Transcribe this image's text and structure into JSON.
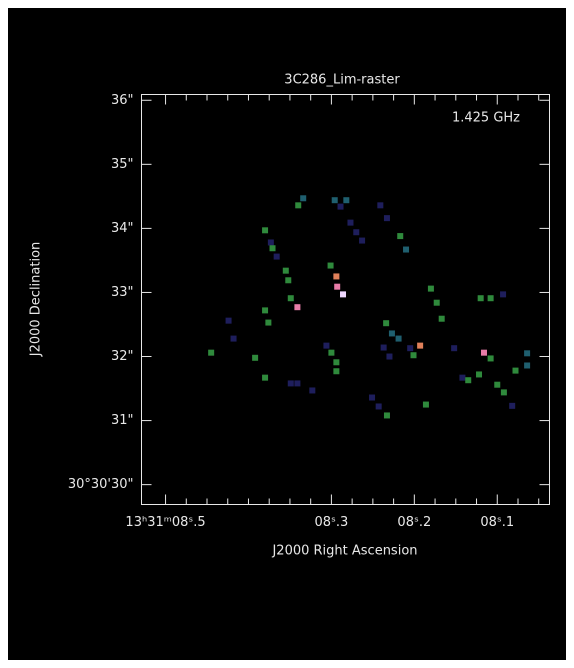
{
  "chart_data": {
    "type": "raster",
    "title": "3C286_Lim-raster",
    "annotation": "1.425 GHz",
    "x_label": "J2000 Right Ascension",
    "y_label": "J2000 Declination",
    "xlim": [
      8.529,
      8.037
    ],
    "ylim": [
      29.69,
      36.09
    ],
    "xticks": [
      {
        "value": 8.5,
        "label": "13ʰ31ᵐ08ˢ.5"
      },
      {
        "value": 8.3,
        "label": "08ˢ.3"
      },
      {
        "value": 8.2,
        "label": "08ˢ.2"
      },
      {
        "value": 8.1,
        "label": "08ˢ.1"
      }
    ],
    "xminorticks": [
      8.475,
      8.45,
      8.425,
      8.4,
      8.375,
      8.35,
      8.325,
      8.275,
      8.25,
      8.225,
      8.175,
      8.15,
      8.125,
      8.075,
      8.05
    ],
    "yticks": [
      {
        "value": 36,
        "label": "36\""
      },
      {
        "value": 35,
        "label": "35\""
      },
      {
        "value": 34,
        "label": "34\""
      },
      {
        "value": 33,
        "label": "33\""
      },
      {
        "value": 32,
        "label": "32\""
      },
      {
        "value": 31,
        "label": "31\""
      },
      {
        "value": 30,
        "label": "30°30'30\""
      }
    ],
    "cells": {
      "ra": [
        8.445,
        8.424,
        8.418,
        8.392,
        8.38,
        8.373,
        8.371,
        8.366,
        8.355,
        8.352,
        8.349,
        8.341,
        8.38,
        8.376,
        8.38,
        8.349,
        8.341,
        8.323,
        8.34,
        8.334,
        8.296,
        8.289,
        8.282,
        8.301,
        8.294,
        8.293,
        8.286,
        8.306,
        8.3,
        8.294,
        8.294,
        8.277,
        8.27,
        8.263,
        8.241,
        8.233,
        8.217,
        8.21,
        8.234,
        8.227,
        8.219,
        8.237,
        8.23,
        8.205,
        8.193,
        8.201,
        8.251,
        8.243,
        8.233,
        8.186,
        8.18,
        8.173,
        8.167,
        8.152,
        8.142,
        8.135,
        8.12,
        8.108,
        8.093,
        8.116,
        8.108,
        8.122,
        8.1,
        8.092,
        8.082,
        8.064,
        8.064,
        8.078
      ],
      "dec": [
        32.06,
        32.56,
        32.28,
        31.98,
        33.97,
        33.78,
        33.69,
        33.56,
        33.34,
        33.19,
        32.91,
        32.77,
        32.72,
        32.53,
        31.67,
        31.58,
        31.58,
        31.47,
        34.36,
        34.47,
        34.44,
        34.34,
        34.44,
        33.42,
        33.25,
        33.09,
        32.97,
        32.17,
        32.06,
        31.91,
        31.77,
        34.09,
        33.94,
        33.81,
        34.36,
        34.16,
        33.88,
        33.67,
        32.52,
        32.36,
        32.28,
        32.14,
        32.0,
        32.13,
        32.17,
        32.02,
        31.36,
        31.22,
        31.08,
        31.25,
        33.06,
        32.84,
        32.59,
        32.13,
        31.67,
        31.63,
        32.91,
        32.91,
        32.97,
        32.06,
        31.97,
        31.72,
        31.56,
        31.44,
        31.23,
        32.05,
        31.86,
        31.78
      ],
      "colors": [
        "#2f8a3c",
        "#1e1e5c",
        "#1e1e5c",
        "#2f8a3c",
        "#2f8a3c",
        "#1e1e5c",
        "#2f8a3c",
        "#1e1e5c",
        "#2f8a3c",
        "#2f8a3c",
        "#2f8a3c",
        "#e87ca8",
        "#2f8a3c",
        "#2f8a3c",
        "#2f8a3c",
        "#1e1e5c",
        "#1e1e5c",
        "#1e1e5c",
        "#2f8a3c",
        "#1f5f6f",
        "#1f5f6f",
        "#1e1e5c",
        "#1f5f6f",
        "#2f8a3c",
        "#e0805a",
        "#e87ca8",
        "#f0d8ff",
        "#1e1e5c",
        "#2f8a3c",
        "#2f8a3c",
        "#2f8a3c",
        "#1e1e5c",
        "#1e1e5c",
        "#1e1e5c",
        "#1e1e5c",
        "#1e1e5c",
        "#2f8a3c",
        "#1f5f6f",
        "#2f8a3c",
        "#1f5f6f",
        "#1f5f6f",
        "#1e1e5c",
        "#1e1e5c",
        "#1e1e5c",
        "#e0805a",
        "#2f8a3c",
        "#1e1e5c",
        "#1e1e5c",
        "#2f8a3c",
        "#2f8a3c",
        "#2f8a3c",
        "#2f8a3c",
        "#2f8a3c",
        "#1e1e5c",
        "#1e1e5c",
        "#2f8a3c",
        "#2f8a3c",
        "#2f8a3c",
        "#1e1e5c",
        "#e87ca8",
        "#2f8a3c",
        "#2f8a3c",
        "#2f8a3c",
        "#2f8a3c",
        "#1e1e5c",
        "#1f5f6f",
        "#1f5f6f",
        "#2f8a3c"
      ]
    }
  }
}
